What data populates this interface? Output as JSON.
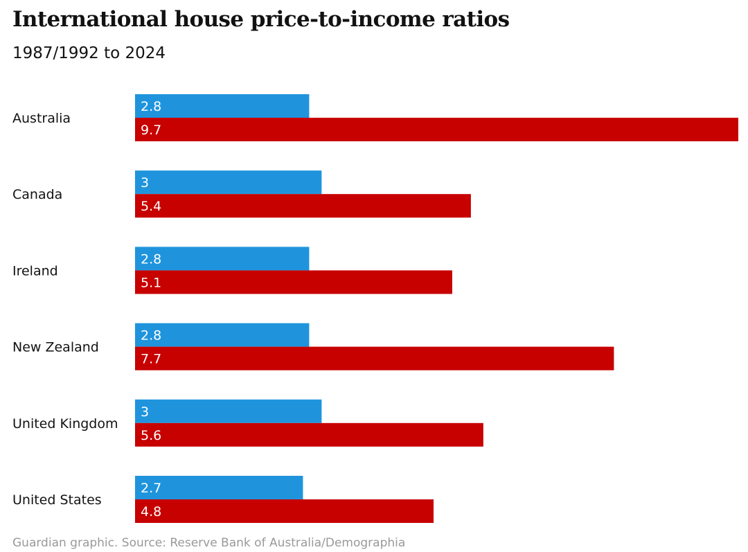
{
  "chart_data": {
    "type": "bar",
    "orientation": "horizontal",
    "title": "International house price-to-income ratios",
    "subtitle": "1987/1992 to 2024",
    "categories": [
      "Australia",
      "Canada",
      "Ireland",
      "New Zealand",
      "United Kingdom",
      "United States"
    ],
    "series": [
      {
        "values": [
          2.8,
          3,
          2.8,
          2.8,
          3,
          2.7
        ],
        "labels": [
          "2.8",
          "3",
          "2.8",
          "2.8",
          "3",
          "2.7"
        ],
        "color": "#1f94dd"
      },
      {
        "values": [
          9.7,
          5.4,
          5.1,
          7.7,
          5.6,
          4.8
        ],
        "labels": [
          "9.7",
          "5.4",
          "5.1",
          "7.7",
          "5.6",
          "4.8"
        ],
        "color": "#c70000"
      }
    ],
    "xlim": [
      0,
      9.7
    ],
    "grid": false,
    "legend": "none",
    "source": "Guardian graphic. Source: Reserve Bank of Australia/Demographia"
  }
}
